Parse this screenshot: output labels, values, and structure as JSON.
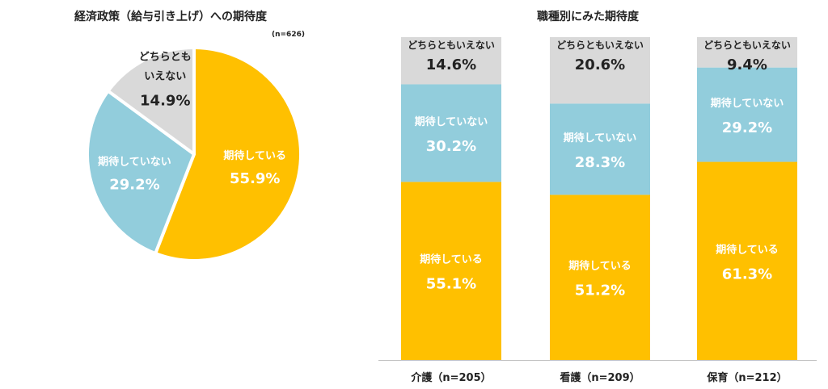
{
  "chart_data": [
    {
      "type": "pie",
      "title": "経済政策（給与引き上げ）への期待度",
      "note": "(n=626)",
      "slices": [
        {
          "label": "期待している",
          "value": 55.9,
          "value_label": "55.9%",
          "color": "#FFC000"
        },
        {
          "label": "期待していない",
          "value": 29.2,
          "value_label": "29.2%",
          "color": "#92CDDC"
        },
        {
          "label_lines": [
            "どちらとも",
            "いえない"
          ],
          "value": 14.9,
          "value_label": "14.9%",
          "color": "#D9D9D9"
        }
      ]
    },
    {
      "type": "bar",
      "stacked": true,
      "title": "職種別にみた期待度",
      "categories": [
        "介護（n=205）",
        "看護（n=209）",
        "保育（n=212）"
      ],
      "series": [
        {
          "name": "期待している",
          "values": [
            55.1,
            51.2,
            61.3
          ],
          "value_labels": [
            "55.1%",
            "51.2%",
            "61.3%"
          ],
          "color": "#FFC000"
        },
        {
          "name": "期待していない",
          "values": [
            30.2,
            28.3,
            29.2
          ],
          "value_labels": [
            "30.2%",
            "28.3%",
            "29.2%"
          ],
          "color": "#92CDDC"
        },
        {
          "name": "どちらともいえない",
          "values": [
            14.6,
            20.6,
            9.4
          ],
          "value_labels": [
            "14.6%",
            "20.6%",
            "9.4%"
          ],
          "color": "#D9D9D9"
        }
      ],
      "ylim": [
        0,
        100
      ]
    }
  ]
}
